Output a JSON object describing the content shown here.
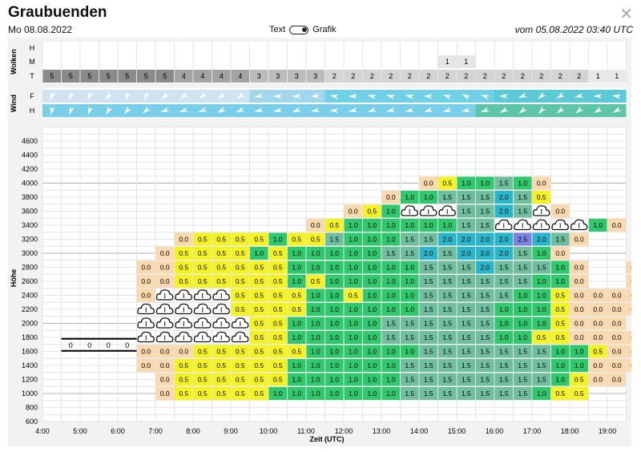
{
  "header": {
    "title": "Graubuenden",
    "date": "Mo 08.08.2022",
    "toggle_left": "Text",
    "toggle_right": "Grafik",
    "issued": "vom 05.08.2022 03:40 UTC",
    "close_icon": "close-icon"
  },
  "clouds": {
    "label": "Wolken",
    "row_labels": [
      "H",
      "M",
      "T"
    ],
    "mid_values": {
      "21": 1,
      "22": 1
    },
    "low_values": [
      5,
      5,
      5,
      5,
      5,
      5,
      5,
      4,
      4,
      4,
      4,
      3,
      3,
      3,
      3,
      2,
      2,
      2,
      2,
      2,
      2,
      2,
      2,
      2,
      2,
      2,
      2,
      2,
      2,
      1,
      1
    ]
  },
  "wind": {
    "label": "Wind",
    "row_labels": [
      "F",
      "H"
    ],
    "icon": "wind-arrow-icon"
  },
  "chart_data": {
    "type": "heatmap",
    "title": "",
    "xlabel": "Zeit (UTC)",
    "ylabel": "Höhe",
    "x_ticks": [
      "4:00",
      "5:00",
      "6:00",
      "7:00",
      "8:00",
      "9:00",
      "10:00",
      "11:00",
      "12:00",
      "13:00",
      "14:00",
      "15:00",
      "16:00",
      "17:00",
      "18:00",
      "19:00"
    ],
    "y_ticks": [
      600,
      800,
      1000,
      1200,
      1400,
      1600,
      1800,
      2000,
      2200,
      2400,
      2600,
      2800,
      3000,
      3200,
      3400,
      3600,
      3800,
      4000,
      4200,
      4400,
      4600
    ],
    "xlim": [
      "4:00",
      "19:30"
    ],
    "ylim": [
      600,
      4800
    ],
    "time_step": "0:30",
    "altitude_step": 200,
    "rows": [
      {
        "alt": 1000,
        "start": "7:00",
        "values": [
          "0.0",
          "0.5",
          "0.5",
          "0.5",
          "0.5",
          "0.5",
          "1.0",
          "1.0",
          "1.0",
          "1.0",
          "1.0",
          "1.0",
          "1.0",
          "1.5",
          "1.5",
          "1.5",
          "1.5",
          "1.5",
          "1.5",
          "1.5",
          "1.0",
          "0.5",
          "0.5"
        ]
      },
      {
        "alt": 1200,
        "start": "7:00",
        "values": [
          "0.0",
          "0.5",
          "0.5",
          "0.5",
          "0.5",
          "0.5",
          "0.5",
          "1.0",
          "1.0",
          "1.0",
          "1.0",
          "1.0",
          "1.0",
          "1.5",
          "1.5",
          "1.5",
          "1.5",
          "1.5",
          "1.5",
          "1.5",
          "1.5",
          "1.0",
          "0.5",
          "0.0",
          "0.0"
        ]
      },
      {
        "alt": 1400,
        "start": "6:30",
        "values": [
          "0.0",
          "0.0",
          "0.5",
          "0.5",
          "0.5",
          "0.5",
          "0.5",
          "0.5",
          "1.0",
          "1.0",
          "1.0",
          "1.0",
          "1.0",
          "1.0",
          "1.5",
          "1.5",
          "1.5",
          "1.5",
          "1.5",
          "1.5",
          "1.5",
          "1.5",
          "1.0",
          "1.0",
          "0.0",
          "0.0",
          "0.0",
          "0.0"
        ]
      },
      {
        "alt": 1600,
        "start": "6:30",
        "values": [
          "0.0",
          "0.0",
          "0.0",
          "0.5",
          "0.5",
          "0.5",
          "0.5",
          "0.5",
          "0.5",
          "1.0",
          "1.0",
          "1.0",
          "1.0",
          "1.0",
          "1.0",
          "1.5",
          "1.5",
          "1.5",
          "1.5",
          "1.5",
          "1.5",
          "1.5",
          "1.0",
          "1.0",
          "0.5",
          "0.0",
          "0.0"
        ]
      },
      {
        "alt": 1800,
        "start": "6:30",
        "values": [
          "C",
          "C",
          "C",
          "C",
          "C",
          "C",
          "0.5",
          "0.5",
          "1.0",
          "1.0",
          "1.0",
          "1.0",
          "1.0",
          "1.5",
          "1.5",
          "1.5",
          "1.5",
          "1.5",
          "1.5",
          "1.0",
          "1.0",
          "0.5",
          "0.5",
          "0.0",
          "0.0",
          "0.0",
          "0.0"
        ]
      },
      {
        "alt": 2000,
        "start": "6:30",
        "values": [
          "C",
          "C",
          "C",
          "C",
          "C",
          "C",
          "0.5",
          "0.5",
          "1.0",
          "1.0",
          "1.0",
          "1.0",
          "1.0",
          "1.5",
          "1.5",
          "1.5",
          "1.5",
          "1.5",
          "1.5",
          "1.0",
          "1.0",
          "1.0",
          "0.5",
          "0.0",
          "0.0",
          "0.0",
          "",
          "0.0"
        ]
      },
      {
        "alt": 2200,
        "start": "6:30",
        "values": [
          "C",
          "C",
          "C",
          "C",
          "C",
          "0.5",
          "0.5",
          "0.5",
          "0.5",
          "1.0",
          "1.0",
          "1.0",
          "1.0",
          "1.0",
          "1.0",
          "1.5",
          "1.5",
          "1.5",
          "1.5",
          "1.0",
          "1.0",
          "1.0",
          "0.5",
          "0.0",
          "0.0",
          "0.0",
          "0.0",
          "0.0"
        ]
      },
      {
        "alt": 2400,
        "start": "6:30",
        "values": [
          "0.0",
          "C",
          "C",
          "C",
          "C",
          "0.5",
          "0.5",
          "0.5",
          "0.5",
          "1.0",
          "1.0",
          "0.5",
          "1.0",
          "1.0",
          "1.0",
          "1.5",
          "1.5",
          "1.5",
          "1.5",
          "1.5",
          "1.0",
          "1.0",
          "0.5",
          "0.0",
          "0.0",
          "0.0",
          "0.0",
          "0.0"
        ]
      },
      {
        "alt": 2600,
        "start": "6:30",
        "values": [
          "0.0",
          "0.0",
          "0.5",
          "0.5",
          "0.5",
          "0.5",
          "0.5",
          "0.5",
          "1.0",
          "0.5",
          "1.0",
          "1.0",
          "1.0",
          "1.0",
          "1.0",
          "1.5",
          "1.5",
          "1.5",
          "1.5",
          "1.5",
          "1.5",
          "1.0",
          "1.0",
          "0.0",
          "",
          "",
          "0.0",
          "0.0"
        ]
      },
      {
        "alt": 2800,
        "start": "6:30",
        "values": [
          "0.0",
          "0.0",
          "0.5",
          "0.5",
          "0.5",
          "0.5",
          "0.5",
          "0.5",
          "1.0",
          "1.0",
          "1.0",
          "1.0",
          "1.0",
          "1.0",
          "1.0",
          "1.5",
          "1.5",
          "1.5",
          "2.0",
          "1.5",
          "1.5",
          "1.5",
          "1.0",
          "0.0",
          "",
          "",
          "0.0"
        ]
      },
      {
        "alt": 3000,
        "start": "7:00",
        "values": [
          "0.0",
          "0.5",
          "0.5",
          "0.5",
          "0.5",
          "1.0",
          "0.5",
          "1.0",
          "1.0",
          "1.0",
          "1.0",
          "1.0",
          "1.5",
          "1.5",
          "2.0",
          "1.5",
          "2.0",
          "2.0",
          "2.0",
          "1.5",
          "1.0",
          "0.0"
        ]
      },
      {
        "alt": 3200,
        "start": "7:30",
        "values": [
          "0.0",
          "0.5",
          "0.5",
          "0.5",
          "0.5",
          "1.0",
          "0.5",
          "0.5",
          "1.5",
          "1.0",
          "1.0",
          "1.0",
          "1.5",
          "1.5",
          "2.0",
          "2.0",
          "2.0",
          "2.0",
          "2.5",
          "2.0",
          "1.5",
          "0.0"
        ]
      },
      {
        "alt": 3400,
        "start": "11:00",
        "values": [
          "0.0",
          "0.5",
          "1.0",
          "1.0",
          "1.0",
          "1.0",
          "1.0",
          "1.0",
          "1.5",
          "1.5",
          "C",
          "C",
          "C",
          "C",
          "C",
          "1.0",
          "0.0"
        ]
      },
      {
        "alt": 3600,
        "start": "12:00",
        "values": [
          "0.0",
          "0.5",
          "1.0",
          "C",
          "C",
          "C",
          "1.5",
          "1.5",
          "2.0",
          "1.5",
          "C",
          "0.0"
        ]
      },
      {
        "alt": 3800,
        "start": "13:00",
        "values": [
          "0.0",
          "1.0",
          "1.0",
          "1.5",
          "1.5",
          "1.5",
          "2.0",
          "1.5",
          "0.5"
        ]
      },
      {
        "alt": 4000,
        "start": "14:00",
        "values": [
          "0.0",
          "0.5",
          "1.0",
          "1.0",
          "1.5",
          "1.0",
          "0.0"
        ]
      }
    ],
    "annotation": {
      "alt": 1700,
      "start": "4:30",
      "values": [
        "0",
        "0",
        "0",
        "0"
      ]
    },
    "legend_colors": {
      "0.0": "#f9d9ad",
      "0.5": "#f4f320",
      "1.0": "#2ec96c",
      "1.5": "#6fbf9f",
      "2.0": "#27b6cc",
      "2.5": "#7b83e0"
    }
  }
}
